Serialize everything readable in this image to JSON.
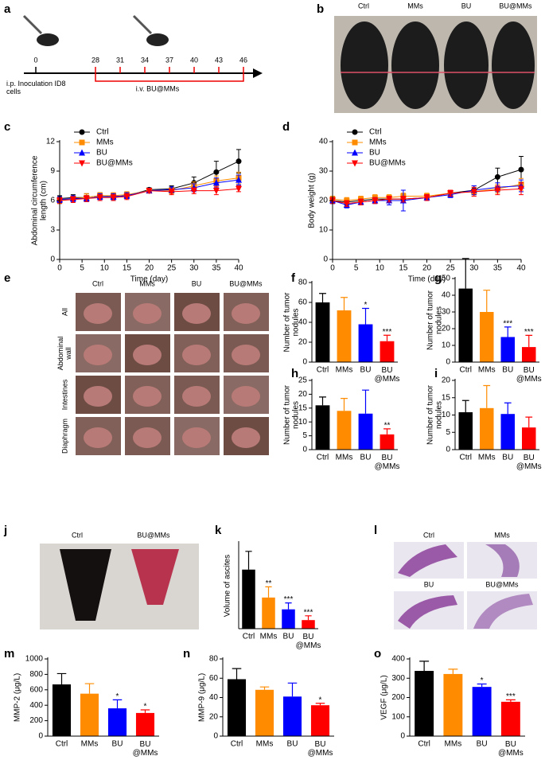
{
  "panels": [
    "a",
    "b",
    "c",
    "d",
    "e",
    "f",
    "g",
    "h",
    "i",
    "j",
    "k",
    "l",
    "m",
    "n",
    "o"
  ],
  "timeline": {
    "days": [
      0,
      28,
      31,
      34,
      37,
      40,
      43,
      46
    ],
    "label_ip": "i.p. Inoculation ID8\ncells",
    "label_iv": "i.v. BU@MMs"
  },
  "photo_b": {
    "labels": [
      "Ctrl",
      "MMs",
      "BU",
      "BU@MMs"
    ]
  },
  "photo_e": {
    "columns": [
      "Ctrl",
      "MMs",
      "BU",
      "BU@MMs"
    ],
    "rows": [
      "All",
      "Abdominal\nwall",
      "Intestines",
      "Diaphragm"
    ]
  },
  "photo_j": {
    "labels": [
      "Ctrl",
      "BU@MMs"
    ]
  },
  "photo_l": {
    "labels": [
      "Ctrl",
      "MMs",
      "BU",
      "BU@MMs"
    ]
  },
  "chart_data": [
    {
      "type": "line",
      "x_label": "Time (day)",
      "y_label": "Abdominal circumference\nlength (cm)",
      "x": [
        0,
        3,
        6,
        9,
        12,
        15,
        20,
        25,
        30,
        35,
        40
      ],
      "xlim": [
        0,
        40
      ],
      "xticks": [
        0,
        5,
        10,
        15,
        20,
        25,
        30,
        35,
        40
      ],
      "ylim": [
        0,
        12
      ],
      "yticks": [
        0,
        3,
        6,
        9,
        12
      ],
      "legend": "upper left",
      "series": [
        {
          "name": "Ctrl",
          "color": "#000000",
          "marker": "circle",
          "values": [
            6.2,
            6.3,
            6.3,
            6.5,
            6.4,
            6.5,
            7.1,
            7.2,
            7.8,
            8.9,
            10.0
          ],
          "errors": [
            0.3,
            0.3,
            0.4,
            0.3,
            0.3,
            0.3,
            0.2,
            0.3,
            0.6,
            1.1,
            1.2
          ]
        },
        {
          "name": "MMs",
          "color": "#ff8c00",
          "marker": "square",
          "values": [
            6.0,
            6.2,
            6.3,
            6.5,
            6.5,
            6.6,
            7.0,
            7.0,
            7.5,
            8.0,
            8.3
          ],
          "errors": [
            0.3,
            0.3,
            0.4,
            0.3,
            0.3,
            0.3,
            0.2,
            0.3,
            0.4,
            0.5,
            0.6
          ]
        },
        {
          "name": "BU",
          "color": "#0000ff",
          "marker": "triangle-up",
          "values": [
            6.1,
            6.2,
            6.2,
            6.4,
            6.4,
            6.5,
            7.0,
            7.1,
            7.3,
            7.8,
            8.1
          ],
          "errors": [
            0.3,
            0.3,
            0.3,
            0.3,
            0.3,
            0.3,
            0.2,
            0.3,
            0.4,
            0.5,
            0.5
          ]
        },
        {
          "name": "BU@MMs",
          "color": "#ff0000",
          "marker": "triangle-down",
          "values": [
            6.0,
            6.1,
            6.2,
            6.3,
            6.3,
            6.4,
            7.0,
            6.9,
            7.0,
            7.0,
            7.2
          ],
          "errors": [
            0.3,
            0.3,
            0.3,
            0.3,
            0.3,
            0.3,
            0.2,
            0.3,
            0.3,
            0.4,
            0.3
          ]
        }
      ]
    },
    {
      "type": "line",
      "x_label": "Time (day)",
      "y_label": "Body weight (g)",
      "x": [
        0,
        3,
        6,
        9,
        12,
        15,
        20,
        25,
        30,
        35,
        40
      ],
      "xlim": [
        0,
        40
      ],
      "xticks": [
        0,
        5,
        10,
        15,
        20,
        25,
        30,
        35,
        40
      ],
      "ylim": [
        0,
        40
      ],
      "yticks": [
        0,
        10,
        20,
        30,
        40
      ],
      "legend": "upper left",
      "series": [
        {
          "name": "Ctrl",
          "color": "#000000",
          "marker": "circle",
          "values": [
            20,
            19.5,
            20,
            20.5,
            20.5,
            20.5,
            21,
            22.5,
            23.5,
            28,
            30.5
          ],
          "errors": [
            1,
            1,
            1,
            1,
            1,
            1,
            1,
            1,
            1.5,
            3,
            4.5
          ]
        },
        {
          "name": "MMs",
          "color": "#ff8c00",
          "marker": "square",
          "values": [
            20.5,
            20,
            20.5,
            21,
            21,
            21.5,
            21.5,
            22.5,
            23,
            24,
            25.5
          ],
          "errors": [
            1,
            1,
            1,
            1,
            1,
            1,
            1,
            1,
            1.5,
            1.5,
            2
          ]
        },
        {
          "name": "BU",
          "color": "#0000ff",
          "marker": "triangle-up",
          "values": [
            20,
            18.5,
            19.5,
            20,
            20,
            20,
            21,
            22,
            23.5,
            24.5,
            25
          ],
          "errors": [
            1,
            1,
            1,
            1,
            1.5,
            3.5,
            1,
            1,
            1.5,
            1.5,
            2
          ]
        },
        {
          "name": "BU@MMs",
          "color": "#ff0000",
          "marker": "triangle-down",
          "values": [
            20,
            19,
            19.5,
            20,
            20.5,
            20.5,
            21,
            22.5,
            23,
            23.5,
            24
          ],
          "errors": [
            1,
            1,
            1,
            1,
            1,
            1,
            1,
            1,
            1.5,
            1.5,
            2
          ]
        }
      ]
    },
    {
      "type": "bar",
      "y_label": "Number of tumor\nnodules",
      "categories": [
        "Ctrl",
        "MMs",
        "BU",
        "BU\n@MMs"
      ],
      "colors": [
        "#000000",
        "#ff8c00",
        "#0000ff",
        "#ff0000"
      ],
      "values": [
        60,
        52,
        38,
        21
      ],
      "errors": [
        9,
        13,
        16,
        6
      ],
      "annotations": [
        null,
        null,
        "*",
        "***"
      ],
      "ylim": [
        0,
        80
      ],
      "yticks": [
        0,
        20,
        40,
        60,
        80
      ]
    },
    {
      "type": "bar",
      "y_label": "Number of tumor\nnodules",
      "categories": [
        "Ctrl",
        "MMs",
        "BU",
        "BU\n@MMs"
      ],
      "colors": [
        "#000000",
        "#ff8c00",
        "#0000ff",
        "#ff0000"
      ],
      "values": [
        44,
        30,
        15,
        9
      ],
      "errors": [
        18,
        13,
        6,
        7
      ],
      "annotations": [
        null,
        null,
        "***",
        "***"
      ],
      "ylim": [
        0,
        50
      ],
      "yticks": [
        0,
        10,
        20,
        30,
        40,
        50
      ]
    },
    {
      "type": "bar",
      "y_label": "Number of tumor\nnodules",
      "categories": [
        "Ctrl",
        "MMs",
        "BU",
        "BU\n@MMs"
      ],
      "colors": [
        "#000000",
        "#ff8c00",
        "#0000ff",
        "#ff0000"
      ],
      "values": [
        16,
        14,
        13,
        5.5
      ],
      "errors": [
        3,
        4.5,
        8.5,
        2
      ],
      "annotations": [
        null,
        null,
        null,
        "**"
      ],
      "ylim": [
        0,
        25
      ],
      "yticks": [
        0,
        5,
        10,
        15,
        20,
        25
      ]
    },
    {
      "type": "bar",
      "y_label": "Number of tumor\nnodules",
      "categories": [
        "Ctrl",
        "MMs",
        "BU",
        "BU\n@MMs"
      ],
      "colors": [
        "#000000",
        "#ff8c00",
        "#0000ff",
        "#ff0000"
      ],
      "values": [
        10.8,
        12,
        10.3,
        6.4
      ],
      "errors": [
        3.4,
        6.5,
        3.2,
        3
      ],
      "ylim": [
        0,
        20
      ],
      "yticks": [
        0,
        5,
        10,
        15,
        20
      ]
    },
    {
      "type": "bar",
      "y_label": "Volume of ascites",
      "categories": [
        "Ctrl",
        "MMs",
        "BU",
        "BU\n@MMs"
      ],
      "colors": [
        "#000000",
        "#ff8c00",
        "#0000ff",
        "#ff0000"
      ],
      "values": [
        55,
        29,
        18,
        8
      ],
      "errors": [
        17,
        10,
        6,
        4
      ],
      "annotations": [
        null,
        "**",
        "***",
        "***"
      ],
      "ylim": [
        0,
        80
      ]
    },
    {
      "type": "bar",
      "y_label": "MMP-2 (μg/L)",
      "categories": [
        "Ctrl",
        "MMs",
        "BU",
        "BU\n@MMs"
      ],
      "colors": [
        "#000000",
        "#ff8c00",
        "#0000ff",
        "#ff0000"
      ],
      "values": [
        670,
        550,
        360,
        300
      ],
      "errors": [
        140,
        130,
        110,
        40
      ],
      "annotations": [
        null,
        null,
        "*",
        "*"
      ],
      "ylim": [
        0,
        1000
      ],
      "yticks": [
        0,
        200,
        400,
        600,
        800,
        1000
      ]
    },
    {
      "type": "bar",
      "y_label": "MMP-9 (μg/L)",
      "categories": [
        "Ctrl",
        "MMs",
        "BU",
        "BU\n@MMs"
      ],
      "colors": [
        "#000000",
        "#ff8c00",
        "#0000ff",
        "#ff0000"
      ],
      "values": [
        59,
        48,
        41,
        32
      ],
      "errors": [
        11,
        3,
        14,
        2
      ],
      "annotations": [
        null,
        null,
        null,
        "*"
      ],
      "ylim": [
        0,
        80
      ],
      "yticks": [
        0,
        20,
        40,
        60,
        80
      ]
    },
    {
      "type": "bar",
      "y_label": "VEGF (μg/L)",
      "categories": [
        "Ctrl",
        "MMs",
        "BU",
        "BU\n@MMs"
      ],
      "colors": [
        "#000000",
        "#ff8c00",
        "#0000ff",
        "#ff0000"
      ],
      "values": [
        338,
        322,
        255,
        178
      ],
      "errors": [
        50,
        25,
        15,
        10
      ],
      "annotations": [
        null,
        null,
        "*",
        "***"
      ],
      "ylim": [
        0,
        400
      ],
      "yticks": [
        0,
        100,
        200,
        300,
        400
      ]
    }
  ]
}
